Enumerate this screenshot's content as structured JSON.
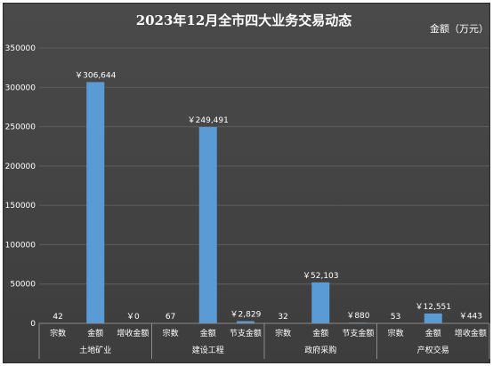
{
  "chart_data": {
    "type": "bar",
    "title": "2023年12月全市四大业务交易动态",
    "unit_label": "金额（万元）",
    "ylim": [
      0,
      350000
    ],
    "yticks": [
      0,
      50000,
      100000,
      150000,
      200000,
      250000,
      300000,
      350000
    ],
    "grid": true,
    "colors": {
      "bar": "#5b9bd5",
      "text": "#ffffff",
      "grid": "#5e5e5e"
    },
    "groups": [
      {
        "name": "土地矿业",
        "items": [
          {
            "label": "宗数",
            "value": 42,
            "display": "42"
          },
          {
            "label": "金额",
            "value": 306644,
            "display": "￥306,644"
          },
          {
            "label": "增收金额",
            "value": 0,
            "display": "￥0"
          }
        ]
      },
      {
        "name": "建设工程",
        "items": [
          {
            "label": "宗数",
            "value": 67,
            "display": "67"
          },
          {
            "label": "金额",
            "value": 249491,
            "display": "￥249,491"
          },
          {
            "label": "节支金额",
            "value": 2829,
            "display": "￥2,829"
          }
        ]
      },
      {
        "name": "政府采购",
        "items": [
          {
            "label": "宗数",
            "value": 32,
            "display": "32"
          },
          {
            "label": "金额",
            "value": 52103,
            "display": "￥52,103"
          },
          {
            "label": "节支金额",
            "value": 880,
            "display": "￥880"
          }
        ]
      },
      {
        "name": "产权交易",
        "items": [
          {
            "label": "宗数",
            "value": 53,
            "display": "53"
          },
          {
            "label": "金额",
            "value": 12551,
            "display": "￥12,551"
          },
          {
            "label": "增收金额",
            "value": 443,
            "display": "￥443"
          }
        ]
      }
    ]
  }
}
